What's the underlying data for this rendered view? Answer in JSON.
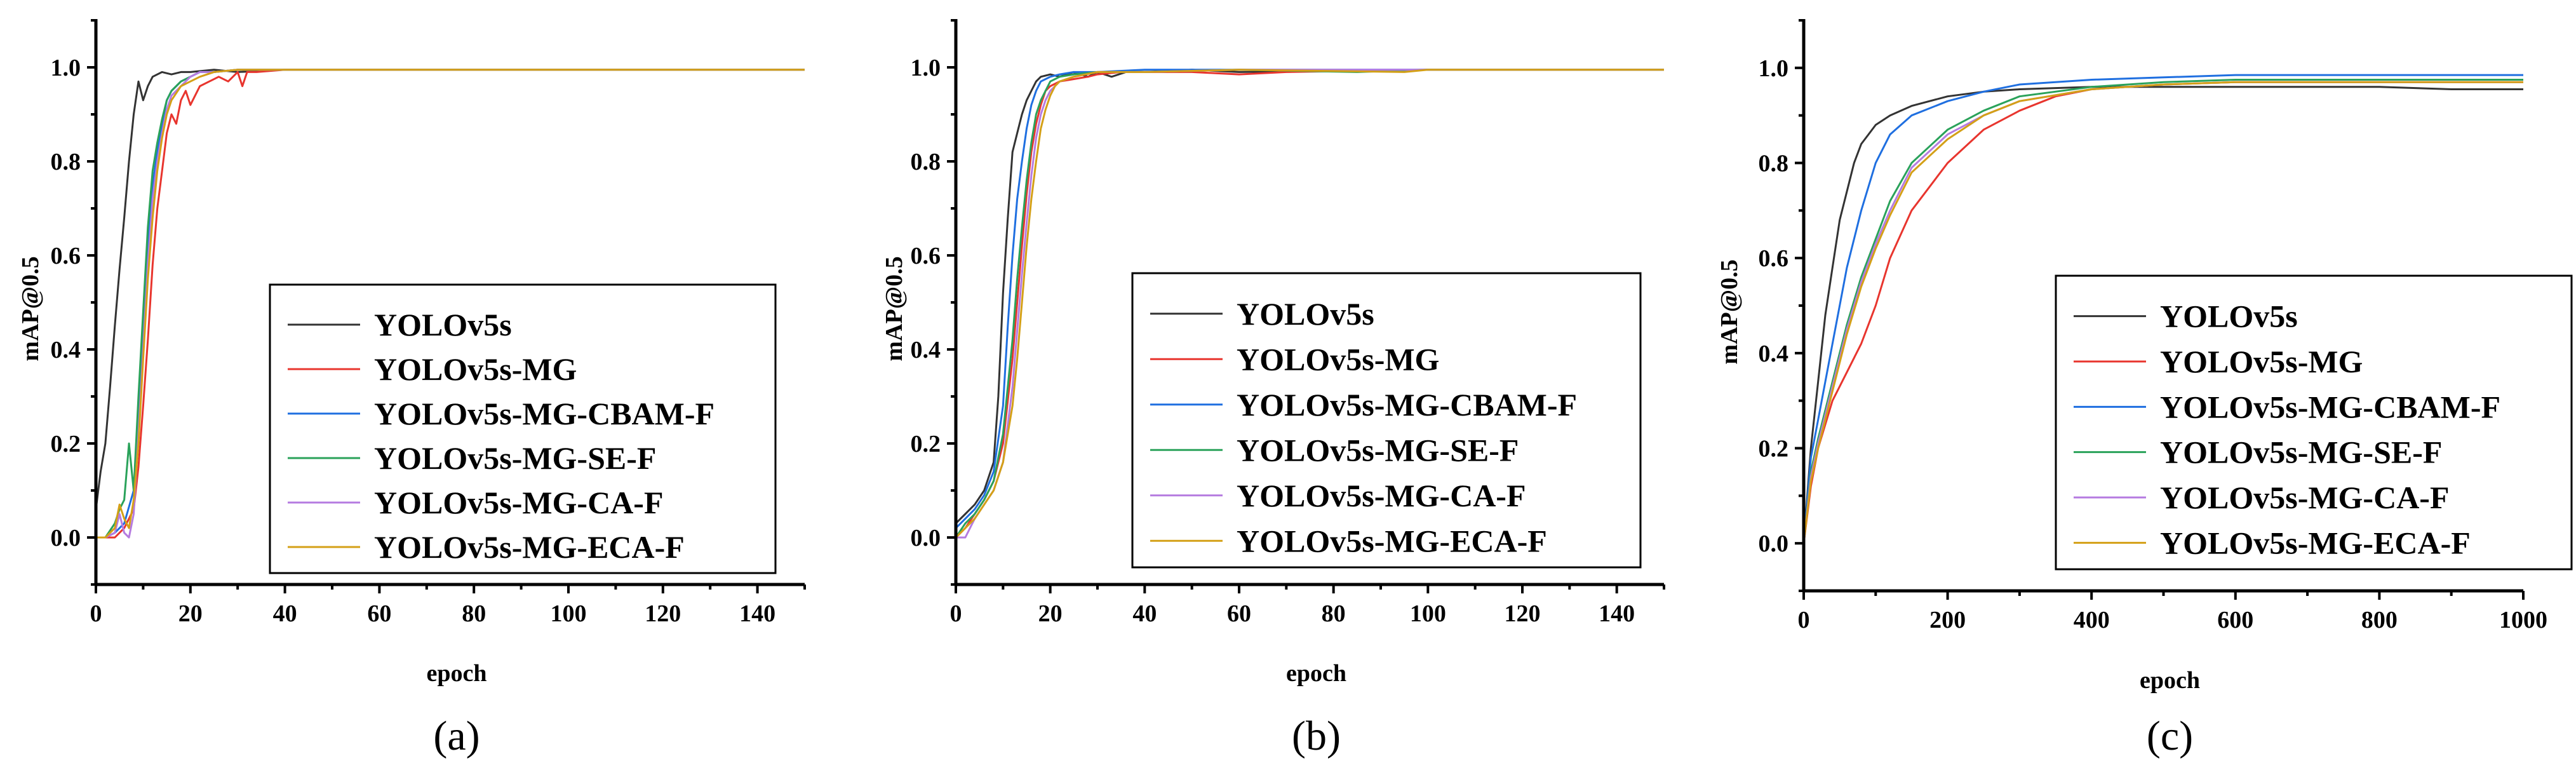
{
  "chart_data": [
    {
      "panel_label": "(a)",
      "type": "line",
      "title": "",
      "xlabel": "epoch",
      "ylabel": "mAP@0.5",
      "xlim": [
        0,
        150
      ],
      "ylim": [
        -0.1,
        1.1
      ],
      "xticks": [
        0,
        20,
        40,
        60,
        80,
        100,
        120,
        140
      ],
      "yticks": [
        0.0,
        0.2,
        0.4,
        0.6,
        0.8,
        1.0
      ],
      "xtick_labels": [
        "0",
        "20",
        "40",
        "60",
        "80",
        "100",
        "120",
        "140"
      ],
      "ytick_labels": [
        "0.0",
        "0.2",
        "0.4",
        "0.6",
        "0.8",
        "1.0"
      ],
      "legend_position": "center-right",
      "series": [
        {
          "name": "YOLOv5s",
          "color": "#333333",
          "x": [
            0,
            1,
            2,
            3,
            4,
            5,
            6,
            7,
            8,
            9,
            10,
            11,
            12,
            14,
            16,
            18,
            20,
            25,
            30,
            40,
            60,
            100,
            150
          ],
          "y": [
            0.06,
            0.14,
            0.2,
            0.32,
            0.45,
            0.57,
            0.68,
            0.8,
            0.9,
            0.97,
            0.93,
            0.96,
            0.98,
            0.99,
            0.985,
            0.99,
            0.99,
            0.995,
            0.99,
            0.995,
            0.995,
            0.995,
            0.995
          ]
        },
        {
          "name": "YOLOv5s-MG",
          "color": "#e8352e",
          "x": [
            0,
            2,
            4,
            6,
            8,
            9,
            10,
            11,
            12,
            13,
            14,
            15,
            16,
            17,
            18,
            19,
            20,
            22,
            24,
            26,
            28,
            30,
            31,
            32,
            34,
            40,
            60,
            100,
            150
          ],
          "y": [
            0.0,
            0.0,
            0.0,
            0.02,
            0.06,
            0.15,
            0.28,
            0.42,
            0.58,
            0.7,
            0.78,
            0.86,
            0.9,
            0.88,
            0.93,
            0.95,
            0.92,
            0.96,
            0.97,
            0.98,
            0.97,
            0.99,
            0.96,
            0.99,
            0.99,
            0.995,
            0.995,
            0.995,
            0.995
          ]
        },
        {
          "name": "YOLOv5s-MG-CBAM-F",
          "color": "#1f6fe0",
          "x": [
            0,
            2,
            4,
            6,
            8,
            9,
            10,
            11,
            12,
            13,
            14,
            15,
            16,
            18,
            20,
            22,
            25,
            30,
            40,
            60,
            100,
            150
          ],
          "y": [
            0.0,
            0.0,
            0.01,
            0.03,
            0.1,
            0.25,
            0.45,
            0.62,
            0.75,
            0.82,
            0.88,
            0.93,
            0.95,
            0.97,
            0.98,
            0.99,
            0.99,
            0.995,
            0.995,
            0.995,
            0.995,
            0.995
          ]
        },
        {
          "name": "YOLOv5s-MG-SE-F",
          "color": "#2aa25a",
          "x": [
            0,
            2,
            4,
            5,
            6,
            7,
            8,
            9,
            10,
            11,
            12,
            13,
            14,
            15,
            16,
            18,
            20,
            22,
            25,
            30,
            40,
            60,
            100,
            150
          ],
          "y": [
            0.0,
            0.0,
            0.03,
            0.06,
            0.08,
            0.2,
            0.1,
            0.3,
            0.48,
            0.66,
            0.78,
            0.84,
            0.89,
            0.93,
            0.95,
            0.97,
            0.98,
            0.99,
            0.99,
            0.995,
            0.995,
            0.995,
            0.995,
            0.995
          ]
        },
        {
          "name": "YOLOv5s-MG-CA-F",
          "color": "#b57be0",
          "x": [
            0,
            2,
            4,
            5,
            6,
            7,
            8,
            9,
            10,
            11,
            12,
            13,
            14,
            15,
            16,
            18,
            20,
            22,
            25,
            30,
            40,
            60,
            100,
            150
          ],
          "y": [
            0.0,
            0.0,
            0.01,
            0.05,
            0.01,
            0.0,
            0.05,
            0.22,
            0.4,
            0.58,
            0.72,
            0.8,
            0.86,
            0.91,
            0.94,
            0.96,
            0.98,
            0.99,
            0.99,
            0.995,
            0.995,
            0.995,
            0.995,
            0.995
          ]
        },
        {
          "name": "YOLOv5s-MG-ECA-F",
          "color": "#d4a017",
          "x": [
            0,
            2,
            4,
            5,
            6,
            7,
            8,
            9,
            10,
            11,
            12,
            13,
            14,
            15,
            16,
            18,
            20,
            22,
            25,
            30,
            40,
            60,
            100,
            150
          ],
          "y": [
            0.0,
            0.0,
            0.02,
            0.07,
            0.04,
            0.02,
            0.08,
            0.2,
            0.38,
            0.55,
            0.68,
            0.78,
            0.85,
            0.9,
            0.93,
            0.96,
            0.97,
            0.98,
            0.99,
            0.995,
            0.995,
            0.995,
            0.995,
            0.995
          ]
        }
      ]
    },
    {
      "panel_label": "(b)",
      "type": "line",
      "title": "",
      "xlabel": "epoch",
      "ylabel": "mAP@0.5",
      "xlim": [
        0,
        150
      ],
      "ylim": [
        -0.1,
        1.1
      ],
      "xticks": [
        0,
        20,
        40,
        60,
        80,
        100,
        120,
        140
      ],
      "yticks": [
        0.0,
        0.2,
        0.4,
        0.6,
        0.8,
        1.0
      ],
      "xtick_labels": [
        "0",
        "20",
        "40",
        "60",
        "80",
        "100",
        "120",
        "140"
      ],
      "ytick_labels": [
        "0.0",
        "0.2",
        "0.4",
        "0.6",
        "0.8",
        "1.0"
      ],
      "legend_position": "center-right",
      "series": [
        {
          "name": "YOLOv5s",
          "color": "#333333",
          "x": [
            0,
            2,
            4,
            6,
            8,
            9,
            10,
            11,
            12,
            13,
            14,
            15,
            16,
            17,
            18,
            20,
            22,
            25,
            28,
            30,
            33,
            36,
            40,
            50,
            60,
            100,
            150
          ],
          "y": [
            0.03,
            0.05,
            0.07,
            0.1,
            0.16,
            0.3,
            0.52,
            0.68,
            0.82,
            0.86,
            0.9,
            0.93,
            0.95,
            0.97,
            0.98,
            0.985,
            0.98,
            0.99,
            0.98,
            0.99,
            0.98,
            0.99,
            0.99,
            0.995,
            0.99,
            0.995,
            0.995
          ]
        },
        {
          "name": "YOLOv5s-MG",
          "color": "#e8352e",
          "x": [
            0,
            2,
            4,
            6,
            8,
            10,
            12,
            13,
            14,
            15,
            16,
            17,
            18,
            19,
            20,
            22,
            25,
            28,
            30,
            35,
            40,
            50,
            60,
            70,
            100,
            150
          ],
          "y": [
            0.0,
            0.02,
            0.05,
            0.08,
            0.12,
            0.2,
            0.38,
            0.5,
            0.62,
            0.73,
            0.82,
            0.88,
            0.92,
            0.95,
            0.96,
            0.97,
            0.975,
            0.98,
            0.985,
            0.99,
            0.99,
            0.99,
            0.985,
            0.99,
            0.995,
            0.995
          ]
        },
        {
          "name": "YOLOv5s-MG-CBAM-F",
          "color": "#1f6fe0",
          "x": [
            0,
            2,
            4,
            6,
            8,
            10,
            11,
            12,
            13,
            14,
            15,
            16,
            17,
            18,
            20,
            22,
            25,
            30,
            40,
            60,
            100,
            150
          ],
          "y": [
            0.02,
            0.04,
            0.06,
            0.09,
            0.14,
            0.28,
            0.45,
            0.6,
            0.72,
            0.8,
            0.87,
            0.92,
            0.95,
            0.97,
            0.98,
            0.985,
            0.99,
            0.99,
            0.995,
            0.995,
            0.995,
            0.995
          ]
        },
        {
          "name": "YOLOv5s-MG-SE-F",
          "color": "#2aa25a",
          "x": [
            0,
            2,
            4,
            6,
            8,
            10,
            12,
            13,
            14,
            15,
            16,
            17,
            18,
            19,
            20,
            22,
            25,
            30,
            40,
            60,
            85,
            100,
            150
          ],
          "y": [
            0.0,
            0.03,
            0.05,
            0.08,
            0.12,
            0.22,
            0.42,
            0.55,
            0.66,
            0.76,
            0.84,
            0.9,
            0.93,
            0.95,
            0.97,
            0.98,
            0.985,
            0.99,
            0.99,
            0.995,
            0.99,
            0.995,
            0.995
          ]
        },
        {
          "name": "YOLOv5s-MG-CA-F",
          "color": "#b57be0",
          "x": [
            0,
            2,
            3,
            4,
            6,
            8,
            10,
            12,
            13,
            14,
            15,
            16,
            17,
            18,
            19,
            20,
            22,
            25,
            30,
            40,
            60,
            100,
            150
          ],
          "y": [
            0.0,
            0.0,
            0.02,
            0.04,
            0.07,
            0.1,
            0.16,
            0.32,
            0.44,
            0.56,
            0.67,
            0.77,
            0.85,
            0.9,
            0.93,
            0.95,
            0.97,
            0.98,
            0.99,
            0.99,
            0.995,
            0.995,
            0.995
          ]
        },
        {
          "name": "YOLOv5s-MG-ECA-F",
          "color": "#d4a017",
          "x": [
            0,
            2,
            4,
            6,
            8,
            10,
            12,
            13,
            14,
            15,
            16,
            17,
            18,
            19,
            20,
            21,
            22,
            25,
            30,
            40,
            60,
            95,
            100,
            150
          ],
          "y": [
            0.0,
            0.02,
            0.04,
            0.07,
            0.1,
            0.16,
            0.28,
            0.38,
            0.5,
            0.62,
            0.72,
            0.8,
            0.87,
            0.91,
            0.94,
            0.96,
            0.97,
            0.98,
            0.99,
            0.99,
            0.995,
            0.99,
            0.995,
            0.995
          ]
        }
      ]
    },
    {
      "panel_label": "(c)",
      "type": "line",
      "title": "",
      "xlabel": "epoch",
      "ylabel": "mAP@0.5",
      "xlim": [
        0,
        1000
      ],
      "ylim": [
        -0.1,
        1.1
      ],
      "xticks": [
        0,
        200,
        400,
        600,
        800,
        1000
      ],
      "yticks": [
        0.0,
        0.2,
        0.4,
        0.6,
        0.8,
        1.0
      ],
      "xtick_labels": [
        "0",
        "200",
        "400",
        "600",
        "800",
        "1000"
      ],
      "ytick_labels": [
        "0.0",
        "0.2",
        "0.4",
        "0.6",
        "0.8",
        "1.0"
      ],
      "legend_position": "center-right",
      "series": [
        {
          "name": "YOLOv5s",
          "color": "#333333",
          "x": [
            0,
            10,
            20,
            30,
            40,
            50,
            60,
            70,
            80,
            90,
            100,
            120,
            150,
            200,
            250,
            300,
            400,
            500,
            600,
            700,
            800,
            900,
            1000
          ],
          "y": [
            0.0,
            0.2,
            0.34,
            0.48,
            0.58,
            0.68,
            0.74,
            0.8,
            0.84,
            0.86,
            0.88,
            0.9,
            0.92,
            0.94,
            0.95,
            0.955,
            0.96,
            0.96,
            0.96,
            0.96,
            0.96,
            0.955,
            0.955
          ]
        },
        {
          "name": "YOLOv5s-MG",
          "color": "#e8352e",
          "x": [
            0,
            10,
            20,
            40,
            60,
            80,
            100,
            120,
            150,
            200,
            250,
            300,
            350,
            400,
            500,
            600,
            700,
            800,
            900,
            1000
          ],
          "y": [
            0.0,
            0.12,
            0.2,
            0.3,
            0.36,
            0.42,
            0.5,
            0.6,
            0.7,
            0.8,
            0.87,
            0.91,
            0.94,
            0.955,
            0.965,
            0.97,
            0.97,
            0.97,
            0.97,
            0.97
          ]
        },
        {
          "name": "YOLOv5s-MG-CBAM-F",
          "color": "#1f6fe0",
          "x": [
            0,
            10,
            20,
            40,
            60,
            80,
            100,
            120,
            150,
            200,
            250,
            300,
            400,
            500,
            600,
            700,
            800,
            900,
            1000
          ],
          "y": [
            0.0,
            0.18,
            0.26,
            0.42,
            0.58,
            0.7,
            0.8,
            0.86,
            0.9,
            0.93,
            0.95,
            0.965,
            0.975,
            0.98,
            0.985,
            0.985,
            0.985,
            0.985,
            0.985
          ]
        },
        {
          "name": "YOLOv5s-MG-SE-F",
          "color": "#2aa25a",
          "x": [
            0,
            10,
            20,
            40,
            60,
            80,
            100,
            120,
            150,
            200,
            250,
            300,
            400,
            500,
            600,
            700,
            800,
            900,
            1000
          ],
          "y": [
            0.0,
            0.15,
            0.22,
            0.34,
            0.46,
            0.56,
            0.64,
            0.72,
            0.8,
            0.87,
            0.91,
            0.94,
            0.96,
            0.97,
            0.975,
            0.975,
            0.975,
            0.975,
            0.975
          ]
        },
        {
          "name": "YOLOv5s-MG-CA-F",
          "color": "#b57be0",
          "x": [
            0,
            10,
            20,
            40,
            60,
            80,
            100,
            120,
            150,
            200,
            250,
            300,
            400,
            500,
            600,
            700,
            800,
            900,
            1000
          ],
          "y": [
            0.0,
            0.14,
            0.21,
            0.33,
            0.45,
            0.55,
            0.63,
            0.7,
            0.79,
            0.86,
            0.9,
            0.93,
            0.955,
            0.965,
            0.97,
            0.97,
            0.97,
            0.97,
            0.97
          ]
        },
        {
          "name": "YOLOv5s-MG-ECA-F",
          "color": "#d4a017",
          "x": [
            0,
            10,
            20,
            40,
            60,
            80,
            100,
            120,
            150,
            200,
            250,
            300,
            400,
            500,
            600,
            700,
            800,
            900,
            1000
          ],
          "y": [
            0.0,
            0.13,
            0.2,
            0.32,
            0.44,
            0.54,
            0.62,
            0.69,
            0.78,
            0.85,
            0.9,
            0.93,
            0.955,
            0.965,
            0.97,
            0.97,
            0.97,
            0.97,
            0.97
          ]
        }
      ]
    }
  ]
}
